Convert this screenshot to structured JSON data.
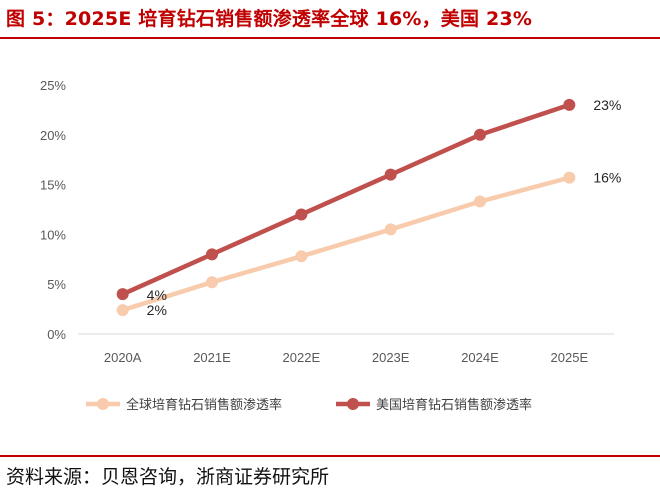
{
  "page": {
    "title": "图 5：2025E 培育钻石销售额渗透率全球 16%，美国 23%",
    "source": "资料来源：贝恩咨询，浙商证券研究所"
  },
  "chart_data": {
    "type": "line",
    "title": "图 5：2025E 培育钻石销售额渗透率全球 16%，美国 23%",
    "categories": [
      "2020A",
      "2021E",
      "2022E",
      "2023E",
      "2024E",
      "2025E"
    ],
    "ylim": [
      0,
      25
    ],
    "yticks": [
      0,
      5,
      10,
      15,
      20,
      25
    ],
    "ytick_labels": [
      "0%",
      "5%",
      "10%",
      "15%",
      "20%",
      "25%"
    ],
    "xlabel": "",
    "ylabel": "",
    "grid": false,
    "legend": "bottom",
    "series": [
      {
        "name": "全球培育钻石销售额渗透率",
        "color": "#F8CBAD",
        "values": [
          2.4,
          5.2,
          7.8,
          10.5,
          13.3,
          15.7
        ],
        "labels": {
          "0": "2%",
          "5": "16%"
        }
      },
      {
        "name": "美国培育钻石销售额渗透率",
        "color": "#C0504D",
        "values": [
          4,
          8,
          12,
          16,
          20,
          23
        ],
        "labels": {
          "0": "4%",
          "5": "23%"
        }
      }
    ]
  }
}
